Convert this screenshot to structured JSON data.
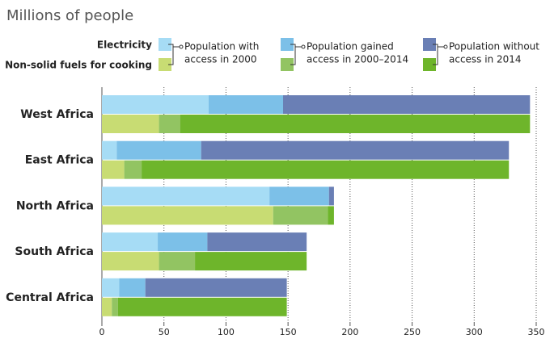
{
  "chart_data": {
    "type": "stacked-bar-horizontal",
    "title": "Millions of people",
    "categories": [
      "West Africa",
      "East Africa",
      "North Africa",
      "South Africa",
      "Central Africa"
    ],
    "segments": [
      [
        "Population with",
        "access in 2000"
      ],
      [
        "Population gained",
        "access in 2000–2014"
      ],
      [
        "Population without",
        "access in 2014"
      ]
    ],
    "groups": [
      {
        "name": "Electricity",
        "series": [
          {
            "color": "#a6dcf5",
            "values": [
              86,
              12,
              135,
              45,
              14
            ]
          },
          {
            "color": "#7cc0e8",
            "values": [
              60,
              68,
              48,
              40,
              21
            ]
          },
          {
            "color": "#6a7fb5",
            "values": [
              199,
              248,
              4,
              80,
              114
            ]
          }
        ]
      },
      {
        "name": "Non-solid fuels for cooking",
        "series": [
          {
            "color": "#c8dc73",
            "values": [
              46,
              18,
              138,
              46,
              8
            ]
          },
          {
            "color": "#92c462",
            "values": [
              17,
              14,
              44,
              29,
              5
            ]
          },
          {
            "color": "#6eb52b",
            "values": [
              282,
              296,
              5,
              90,
              136
            ]
          }
        ]
      }
    ],
    "xlim": [
      0,
      350
    ],
    "xticks": [
      0,
      50,
      100,
      150,
      200,
      250,
      300,
      350
    ],
    "grid": true
  }
}
